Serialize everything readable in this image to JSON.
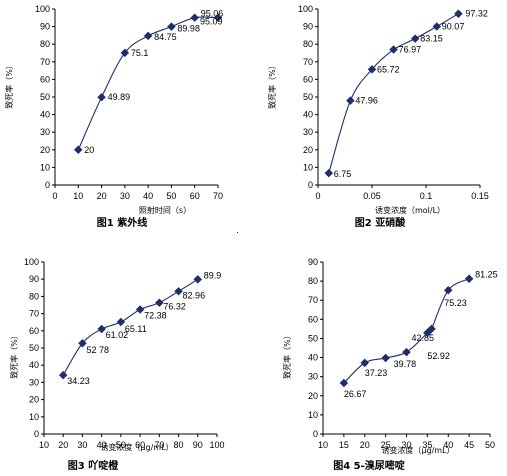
{
  "chart_data": [
    {
      "type": "line",
      "title": "图1 紫外线",
      "xlabel": "照射时间（s）",
      "ylabel": "致死率（%）",
      "xlim": [
        0,
        70
      ],
      "xticks": [
        0,
        10,
        20,
        30,
        40,
        50,
        60,
        70
      ],
      "ylim": [
        0,
        100
      ],
      "yticks": [
        0,
        10,
        20,
        30,
        40,
        50,
        60,
        70,
        80,
        90,
        100
      ],
      "x": [
        10,
        20,
        30,
        40,
        50,
        60,
        70
      ],
      "values": [
        20,
        49.89,
        75.1,
        84.75,
        89.98,
        95.06,
        95.09
      ],
      "labels": [
        "20",
        "49.89",
        "75.1",
        "84.75",
        "89.98",
        "95.06",
        "95.09"
      ]
    },
    {
      "type": "line",
      "title": "图2 亚硝酸",
      "xlabel": "诱变浓度（mol/L）",
      "ylabel": "致死率（%）",
      "xlim": [
        0,
        0.15
      ],
      "xticks": [
        0,
        0.05,
        0.1,
        0.15
      ],
      "ylim": [
        0,
        100
      ],
      "yticks": [
        0,
        10,
        20,
        30,
        40,
        50,
        60,
        70,
        80,
        90,
        100
      ],
      "x": [
        0.01,
        0.03,
        0.05,
        0.07,
        0.09,
        0.11,
        0.13
      ],
      "values": [
        6.75,
        47.96,
        65.72,
        76.97,
        83.15,
        90.07,
        97.32
      ],
      "labels": [
        "6.75",
        "47.96",
        "65.72",
        "76.97",
        "83.15",
        "90.07",
        "97.32"
      ]
    },
    {
      "type": "line",
      "title": "图3 吖啶橙",
      "xlabel": "诱变浓度（μg/mL）",
      "ylabel": "致死率（%）",
      "xlim": [
        10,
        100
      ],
      "xticks": [
        10,
        20,
        30,
        40,
        50,
        60,
        70,
        80,
        90,
        100
      ],
      "ylim": [
        0,
        100
      ],
      "yticks": [
        0,
        10,
        20,
        30,
        40,
        50,
        60,
        70,
        80,
        90,
        100
      ],
      "x": [
        20,
        30,
        40,
        50,
        60,
        70,
        80,
        90
      ],
      "values": [
        34.23,
        52.78,
        61.02,
        65.11,
        72.38,
        76.32,
        82.96,
        89.9
      ],
      "labels": [
        "34.23",
        "52 78",
        "61.02",
        "65.11",
        "72.38",
        "76.32",
        "82.96",
        "89.9"
      ]
    },
    {
      "type": "line",
      "title": "图4 5-溴尿嘧啶",
      "xlabel": "诱变浓度（μg/mL）",
      "ylabel": "致死率（%）",
      "xlim": [
        10,
        50
      ],
      "xticks": [
        10,
        15,
        20,
        25,
        30,
        35,
        40,
        45,
        50
      ],
      "ylim": [
        0,
        90
      ],
      "yticks": [
        0,
        10,
        20,
        30,
        40,
        50,
        60,
        70,
        80,
        90
      ],
      "x": [
        15,
        20,
        25,
        30,
        35,
        36,
        40,
        45
      ],
      "values": [
        26.67,
        37.23,
        39.78,
        42.85,
        52.92,
        55,
        75.23,
        81.25
      ],
      "labels": [
        "26.67",
        "37.23",
        "39.78",
        "42.85",
        "52.92",
        "",
        "75.23",
        "81.25"
      ]
    }
  ]
}
